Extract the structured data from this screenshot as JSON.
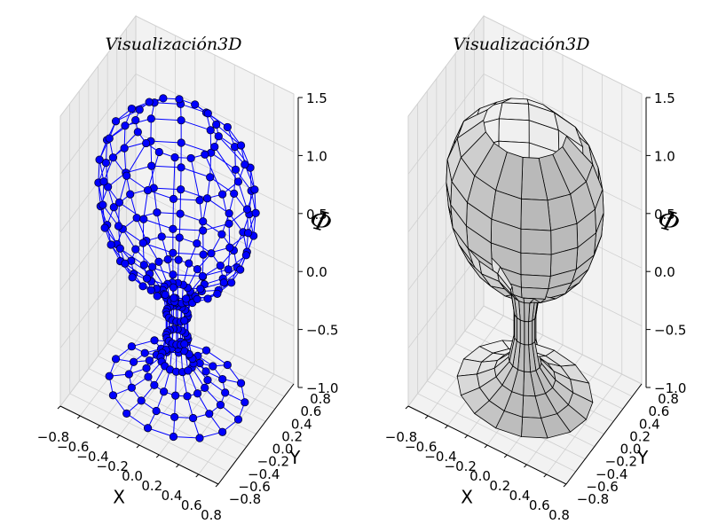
{
  "chart_data": [
    {
      "type": "scatter",
      "title": "Visualización3D",
      "xlabel": "X",
      "ylabel": "Y",
      "zlabel": "Φ",
      "xticks": [
        "−0.8",
        "−0.6",
        "−0.4",
        "−0.2",
        "0.0",
        "0.2",
        "0.4",
        "0.6",
        "0.8"
      ],
      "yticks": [
        "−0.8",
        "−0.6",
        "−0.4",
        "−0.2",
        "0.0",
        "0.2",
        "0.4",
        "0.6",
        "0.8"
      ],
      "zticks": [
        "−1.0",
        "−0.5",
        "0.0",
        "0.5",
        "1.0",
        "1.5"
      ],
      "xlim": [
        -0.8,
        0.8
      ],
      "ylim": [
        -0.8,
        0.8
      ],
      "zlim": [
        -1.0,
        1.5
      ],
      "grid": true,
      "style": "wireframe-markers",
      "line_color": "#0000ff",
      "marker_color": "#0000ff",
      "shape": {
        "description_levels_z": [
          -0.95,
          -0.9,
          -0.82,
          -0.7,
          -0.5,
          -0.3,
          -0.12,
          0.0,
          0.08,
          0.2,
          0.35,
          0.5,
          0.7,
          0.9,
          1.1,
          1.3
        ],
        "radii": [
          0.62,
          0.44,
          0.28,
          0.15,
          0.1,
          0.1,
          0.13,
          0.25,
          0.42,
          0.55,
          0.64,
          0.7,
          0.72,
          0.71,
          0.62,
          0.38
        ],
        "points_per_ring": 16
      }
    },
    {
      "type": "surface",
      "title": "Visualización3D",
      "xlabel": "X",
      "ylabel": "Y",
      "zlabel": "Φ",
      "xticks": [
        "−0.8",
        "−0.6",
        "−0.4",
        "−0.2",
        "0.0",
        "0.2",
        "0.4",
        "0.6",
        "0.8"
      ],
      "yticks": [
        "−0.8",
        "−0.6",
        "−0.4",
        "−0.2",
        "0.0",
        "0.2",
        "0.4",
        "0.6",
        "0.8"
      ],
      "zticks": [
        "−1.0",
        "−0.5",
        "0.0",
        "0.5",
        "1.0",
        "1.5"
      ],
      "xlim": [
        -0.8,
        0.8
      ],
      "ylim": [
        -0.8,
        0.8
      ],
      "zlim": [
        -1.0,
        1.5
      ],
      "grid": true,
      "style": "shaded-surface",
      "face_color": "#d9d9d9",
      "edge_color": "#000000"
    }
  ]
}
